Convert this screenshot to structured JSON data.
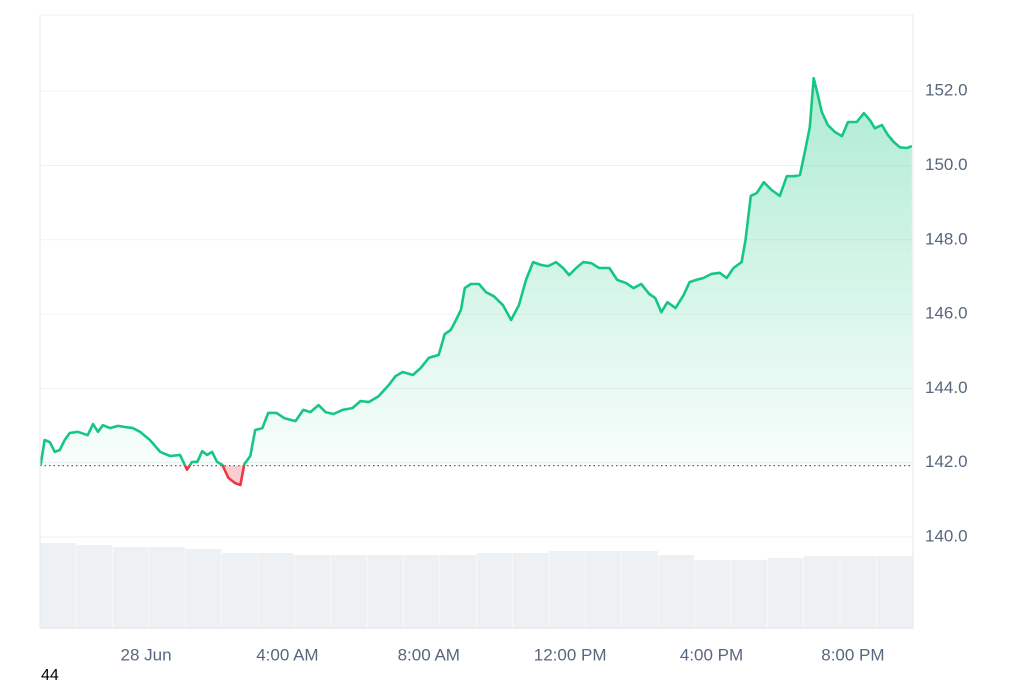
{
  "chart_data": {
    "type": "line",
    "x": [
      -2.98,
      -2.87,
      -2.72,
      -2.58,
      -2.44,
      -2.3,
      -2.16,
      -1.93,
      -1.65,
      -1.5,
      -1.36,
      -1.22,
      -1.02,
      -0.79,
      -0.6,
      -0.37,
      -0.17,
      0.11,
      0.4,
      0.68,
      0.96,
      1.16,
      1.3,
      1.45,
      1.59,
      1.73,
      1.87,
      2.01,
      2.16,
      2.33,
      2.52,
      2.67,
      2.78,
      2.95,
      3.09,
      3.29,
      3.46,
      3.69,
      3.91,
      4.23,
      4.45,
      4.65,
      4.88,
      5.08,
      5.3,
      5.56,
      5.84,
      6.07,
      6.3,
      6.58,
      6.87,
      7.06,
      7.26,
      7.55,
      7.77,
      8.0,
      8.28,
      8.45,
      8.62,
      8.77,
      8.91,
      9.02,
      9.19,
      9.42,
      9.62,
      9.84,
      10.1,
      10.33,
      10.55,
      10.75,
      10.95,
      11.18,
      11.38,
      11.6,
      11.8,
      11.97,
      12.17,
      12.37,
      12.6,
      12.82,
      13.11,
      13.33,
      13.59,
      13.79,
      14.01,
      14.24,
      14.41,
      14.58,
      14.75,
      14.98,
      15.21,
      15.38,
      15.57,
      15.77,
      16.0,
      16.23,
      16.43,
      16.62,
      16.85,
      16.96,
      17.11,
      17.28,
      17.48,
      17.7,
      17.93,
      18.13,
      18.33,
      18.5,
      18.64,
      18.78,
      18.89,
      19.01,
      19.12,
      19.29,
      19.49,
      19.69,
      19.86,
      20.11,
      20.31,
      20.48,
      20.62,
      20.82,
      20.99,
      21.16,
      21.33,
      21.53,
      21.67
    ],
    "values": [
      141.94,
      142.61,
      142.55,
      142.29,
      142.34,
      142.61,
      142.8,
      142.83,
      142.74,
      143.04,
      142.83,
      143.01,
      142.93,
      142.99,
      142.96,
      142.93,
      142.83,
      142.61,
      142.29,
      142.18,
      142.21,
      141.81,
      142.02,
      142.02,
      142.31,
      142.21,
      142.29,
      142.02,
      141.94,
      141.59,
      141.45,
      141.4,
      141.96,
      142.18,
      142.88,
      142.93,
      143.34,
      143.34,
      143.2,
      143.12,
      143.42,
      143.36,
      143.55,
      143.36,
      143.31,
      143.42,
      143.47,
      143.66,
      143.63,
      143.79,
      144.09,
      144.33,
      144.44,
      144.36,
      144.55,
      144.82,
      144.9,
      145.46,
      145.57,
      145.84,
      146.11,
      146.7,
      146.81,
      146.81,
      146.59,
      146.48,
      146.24,
      145.84,
      146.24,
      146.92,
      147.4,
      147.32,
      147.29,
      147.4,
      147.24,
      147.05,
      147.24,
      147.4,
      147.37,
      147.24,
      147.24,
      146.92,
      146.83,
      146.7,
      146.81,
      146.54,
      146.43,
      146.05,
      146.32,
      146.16,
      146.51,
      146.86,
      146.92,
      146.97,
      147.08,
      147.11,
      146.97,
      147.24,
      147.4,
      147.99,
      149.18,
      149.26,
      149.55,
      149.34,
      149.18,
      149.71,
      149.71,
      149.74,
      150.36,
      151.03,
      152.35,
      151.89,
      151.44,
      151.09,
      150.9,
      150.79,
      151.17,
      151.17,
      151.41,
      151.22,
      151.0,
      151.09,
      150.82,
      150.63,
      150.49,
      150.47,
      150.52
    ],
    "baseline": 141.92,
    "up_color": "#16c784",
    "down_color": "#ea3943",
    "xlim": [
      -3.0,
      21.7
    ],
    "xticks": [
      {
        "value": 0,
        "label": "28 Jun"
      },
      {
        "value": 4,
        "label": "4:00 AM"
      },
      {
        "value": 8,
        "label": "8:00 AM"
      },
      {
        "value": 12,
        "label": "12:00 PM"
      },
      {
        "value": 16,
        "label": "4:00 PM"
      },
      {
        "value": 20,
        "label": "8:00 PM"
      }
    ],
    "ylim": [
      137.55,
      154.05
    ],
    "yticks": [
      {
        "value": 140,
        "label": "140.0"
      },
      {
        "value": 142,
        "label": "142.0"
      },
      {
        "value": 144,
        "label": "144.0"
      },
      {
        "value": 146,
        "label": "146.0"
      },
      {
        "value": 148,
        "label": "148.0"
      },
      {
        "value": 150,
        "label": "150.0"
      },
      {
        "value": 152,
        "label": "152.0"
      }
    ],
    "grid": true,
    "volume": {
      "values": [
        100,
        97.6,
        95.3,
        95.3,
        92.9,
        88.2,
        88.2,
        85.9,
        85.9,
        85.9,
        85.9,
        85.9,
        88.2,
        88.2,
        90.6,
        90.6,
        90.6,
        85.9,
        80,
        80,
        82.4,
        84.7,
        84.7,
        84.7
      ],
      "ylim": [
        0,
        100
      ],
      "color": "#eef1f4"
    }
  },
  "footer_text": "44"
}
